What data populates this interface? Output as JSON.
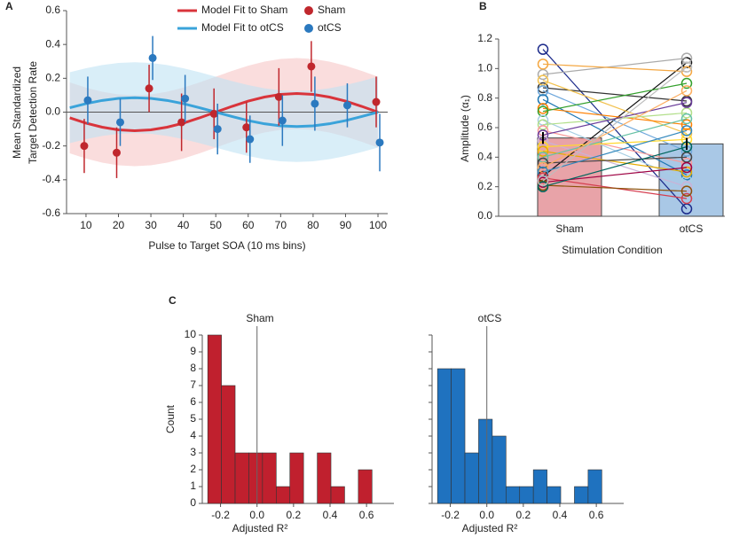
{
  "chart_data": [
    {
      "type": "line",
      "panel": "A",
      "ylabel": [
        "Mean Standardized",
        "Target Detection Rate"
      ],
      "xlabel": "Pulse to Target SOA (10 ms bins)",
      "xlim": [
        4,
        103
      ],
      "xticks": [
        10,
        20,
        30,
        40,
        50,
        60,
        70,
        80,
        90,
        100
      ],
      "ylim": [
        -0.6,
        0.6
      ],
      "yticks": [
        -0.6,
        -0.4,
        -0.2,
        {
          "value": 0,
          "label": "0.0"
        },
        0.2,
        0.4,
        0.6
      ],
      "x": [
        10,
        20,
        30,
        40,
        50,
        60,
        70,
        80,
        90,
        100
      ],
      "series": [
        {
          "name": "Sham",
          "color": "#c0272d",
          "values": [
            -0.2,
            -0.24,
            0.14,
            -0.06,
            -0.01,
            -0.09,
            0.09,
            0.27,
            null,
            0.06
          ],
          "errors": [
            0.16,
            0.15,
            0.14,
            0.17,
            0.15,
            0.15,
            0.17,
            0.15,
            null,
            0.15
          ]
        },
        {
          "name": "otCS",
          "color": "#2b79bf",
          "values": [
            0.07,
            -0.06,
            0.32,
            0.08,
            -0.1,
            -0.16,
            -0.05,
            0.05,
            0.04,
            -0.18
          ],
          "errors": [
            0.14,
            0.14,
            0.13,
            0.14,
            0.15,
            0.14,
            0.15,
            0.16,
            0.13,
            0.17
          ]
        }
      ],
      "fits": [
        {
          "name": "Model Fit to Sham",
          "color": "#d9343b",
          "band_color": "#f7c6c6",
          "x": [
            5,
            10,
            15,
            20,
            25,
            30,
            35,
            40,
            45,
            50,
            55,
            60,
            65,
            70,
            75,
            80,
            85,
            90,
            95,
            100
          ],
          "values": [
            -0.034,
            -0.065,
            -0.089,
            -0.105,
            -0.11,
            -0.105,
            -0.089,
            -0.065,
            -0.034,
            0,
            0.034,
            0.065,
            0.089,
            0.105,
            0.11,
            0.105,
            0.089,
            0.065,
            0.034,
            0
          ]
        },
        {
          "name": "Model Fit to otCS",
          "color": "#3aa3da",
          "band_color": "#bfe3f4",
          "x": [
            5,
            10,
            15,
            20,
            25,
            30,
            35,
            40,
            45,
            50,
            55,
            60,
            65,
            70,
            75,
            80,
            85,
            90,
            95,
            100
          ],
          "values": [
            0.026,
            0.05,
            0.069,
            0.081,
            0.085,
            0.081,
            0.069,
            0.05,
            0.026,
            0,
            -0.026,
            -0.05,
            -0.069,
            -0.081,
            -0.085,
            -0.081,
            -0.069,
            -0.05,
            -0.026,
            0
          ]
        }
      ]
    },
    {
      "type": "bar",
      "panel": "B",
      "ylabel": "Amplitude (α₁)",
      "xlabel": "Stimulation Condition",
      "categories": [
        "Sham",
        "otCS"
      ],
      "values": [
        0.53,
        0.49
      ],
      "errors": [
        0.04,
        0.04
      ],
      "colors": [
        "#e8a3a8",
        "#a9c8e6"
      ],
      "ylim": [
        0,
        1.2
      ],
      "yticks": [
        {
          "value": 0,
          "label": "0.0"
        },
        0.2,
        0.4,
        0.6,
        0.8,
        {
          "value": 1,
          "label": "1.0"
        },
        1.2
      ],
      "subjects": [
        {
          "color": "#1b2a8a",
          "values": [
            1.13,
            0.05
          ]
        },
        {
          "color": "#111111",
          "values": [
            0.27,
            1.04
          ]
        },
        {
          "color": "#333333",
          "values": [
            0.87,
            0.78
          ]
        },
        {
          "color": "#aaaaaa",
          "values": [
            0.96,
            1.07
          ]
        },
        {
          "color": "#f4a742",
          "values": [
            1.03,
            0.98
          ]
        },
        {
          "color": "#f2c14e",
          "values": [
            0.92,
            0.56
          ]
        },
        {
          "color": "#6fa8dc",
          "values": [
            0.85,
            0.44
          ]
        },
        {
          "color": "#1f78b4",
          "values": [
            0.79,
            0.28
          ]
        },
        {
          "color": "#ff7f00",
          "values": [
            0.73,
            0.62
          ]
        },
        {
          "color": "#33a02c",
          "values": [
            0.71,
            0.9
          ]
        },
        {
          "color": "#a6cee3",
          "values": [
            0.65,
            0.24
          ]
        },
        {
          "color": "#b2df8a",
          "values": [
            0.62,
            0.7
          ]
        },
        {
          "color": "#fb9a99",
          "values": [
            0.58,
            0.36
          ]
        },
        {
          "color": "#6a3d9a",
          "values": [
            0.55,
            0.77
          ]
        },
        {
          "color": "#cab2d6",
          "values": [
            0.51,
            0.2
          ]
        },
        {
          "color": "#ffd92f",
          "values": [
            0.47,
            0.52
          ]
        },
        {
          "color": "#e6ab02",
          "values": [
            0.44,
            0.3
          ]
        },
        {
          "color": "#66c2a5",
          "values": [
            0.4,
            0.66
          ]
        },
        {
          "color": "#444444",
          "values": [
            0.36,
            0.4
          ]
        },
        {
          "color": "#fdae61",
          "values": [
            0.33,
            0.85
          ]
        },
        {
          "color": "#3288bd",
          "values": [
            0.3,
            0.58
          ]
        },
        {
          "color": "#d53e4f",
          "values": [
            0.26,
            0.12
          ]
        },
        {
          "color": "#9e0142",
          "values": [
            0.23,
            0.33
          ]
        },
        {
          "color": "#8c510a",
          "values": [
            0.21,
            0.17
          ]
        },
        {
          "color": "#01665e",
          "values": [
            0.2,
            0.47
          ]
        },
        {
          "color": "#bdbdbd",
          "values": [
            0.24,
            1.01
          ]
        }
      ]
    },
    {
      "type": "histogram",
      "panel": "C",
      "title": "Sham",
      "ylabel": "Count",
      "xlabel": "Adjusted R²",
      "color": "#c0202e",
      "bins": [
        -0.27,
        -0.195,
        -0.12,
        -0.045,
        0.03,
        0.105,
        0.18,
        0.255,
        0.33,
        0.405,
        0.48,
        0.555,
        0.63
      ],
      "values": [
        10,
        7,
        3,
        3,
        3,
        1,
        3,
        0,
        3,
        1,
        0,
        2
      ],
      "xlim": [
        -0.3,
        0.75
      ],
      "xticks": [
        -0.2,
        {
          "value": 0,
          "label": "0.0"
        },
        0.2,
        0.4,
        0.6
      ],
      "ylim": [
        0,
        10
      ],
      "yticks": [
        0,
        1,
        2,
        3,
        4,
        5,
        6,
        7,
        8,
        9,
        10
      ]
    },
    {
      "type": "histogram",
      "title": "otCS",
      "xlabel": "Adjusted R²",
      "color": "#1f72bf",
      "bins": [
        -0.27,
        -0.195,
        -0.12,
        -0.045,
        0.03,
        0.105,
        0.18,
        0.255,
        0.33,
        0.405,
        0.48,
        0.555,
        0.63
      ],
      "values": [
        8,
        8,
        3,
        5,
        4,
        1,
        1,
        2,
        1,
        0,
        1,
        2
      ],
      "xlim": [
        -0.3,
        0.75
      ],
      "xticks": [
        -0.2,
        {
          "value": 0,
          "label": "0.0"
        },
        0.2,
        0.4,
        0.6
      ],
      "ylim": [
        0,
        10
      ],
      "yticks": [
        0,
        1,
        2,
        3,
        4,
        5,
        6,
        7,
        8,
        9,
        10
      ]
    }
  ]
}
